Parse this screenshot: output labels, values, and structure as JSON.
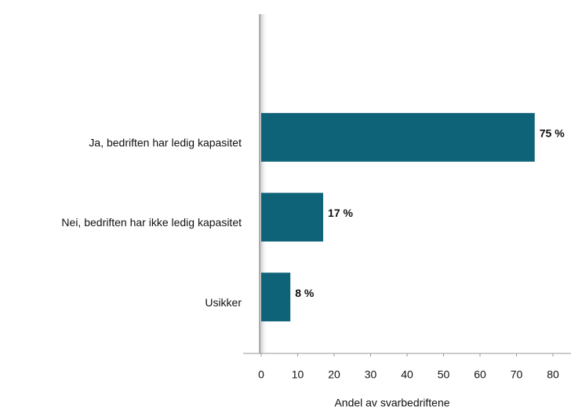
{
  "chart_data": {
    "type": "bar",
    "orientation": "horizontal",
    "categories": [
      "Ja, bedriften har ledig kapasitet",
      "Nei, bedriften har ikke ledig kapasitet",
      "Usikker"
    ],
    "values": [
      75,
      17,
      8
    ],
    "value_labels": [
      "75 %",
      "17 %",
      "8 %"
    ],
    "color": "#0f6379",
    "xlim": [
      0,
      80
    ],
    "xticks": [
      0,
      10,
      20,
      30,
      40,
      50,
      60,
      70,
      80
    ],
    "xlabel": "Andel av svarbedriftene",
    "grid": false
  }
}
